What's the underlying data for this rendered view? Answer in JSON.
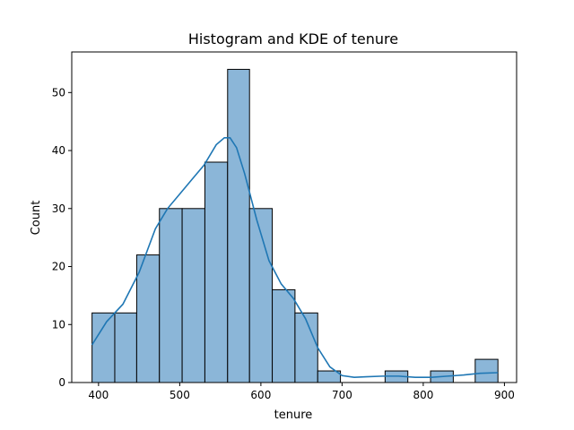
{
  "chart_data": {
    "type": "bar",
    "title": "Histogram and KDE of tenure",
    "xlabel": "tenure",
    "ylabel": "Count",
    "xlim": [
      367,
      915
    ],
    "ylim": [
      0,
      57
    ],
    "xticks": [
      400,
      500,
      600,
      700,
      800,
      900
    ],
    "yticks": [
      0,
      10,
      20,
      30,
      40,
      50
    ],
    "bar_color": "#8bb6d8",
    "bar_edge_color": "#000000",
    "kde_color": "#1f77b4",
    "bins": [
      {
        "x0": 392,
        "x1": 420,
        "count": 12
      },
      {
        "x0": 420,
        "x1": 447,
        "count": 12
      },
      {
        "x0": 447,
        "x1": 475,
        "count": 22
      },
      {
        "x0": 475,
        "x1": 503,
        "count": 30
      },
      {
        "x0": 503,
        "x1": 531,
        "count": 30
      },
      {
        "x0": 531,
        "x1": 559,
        "count": 38
      },
      {
        "x0": 559,
        "x1": 586,
        "count": 54
      },
      {
        "x0": 586,
        "x1": 614,
        "count": 30
      },
      {
        "x0": 614,
        "x1": 642,
        "count": 16
      },
      {
        "x0": 642,
        "x1": 670,
        "count": 12
      },
      {
        "x0": 670,
        "x1": 698,
        "count": 2
      },
      {
        "x0": 698,
        "x1": 725,
        "count": 0
      },
      {
        "x0": 725,
        "x1": 753,
        "count": 0
      },
      {
        "x0": 753,
        "x1": 781,
        "count": 2
      },
      {
        "x0": 781,
        "x1": 809,
        "count": 0
      },
      {
        "x0": 809,
        "x1": 837,
        "count": 2
      },
      {
        "x0": 837,
        "x1": 864,
        "count": 0
      },
      {
        "x0": 864,
        "x1": 892,
        "count": 4
      }
    ],
    "kde": {
      "x": [
        392,
        410,
        430,
        450,
        470,
        485,
        500,
        515,
        530,
        545,
        555,
        562,
        570,
        580,
        595,
        610,
        625,
        640,
        655,
        670,
        685,
        700,
        715,
        730,
        750,
        770,
        790,
        810,
        830,
        850,
        870,
        892
      ],
      "y": [
        6.5,
        10.5,
        13.5,
        19,
        26.5,
        30,
        32.5,
        35,
        37.5,
        41,
        42.2,
        42.2,
        40.5,
        36,
        28,
        21,
        17,
        14.5,
        11,
        6,
        2.7,
        1.2,
        0.9,
        1,
        1.1,
        1.1,
        0.9,
        0.9,
        1.1,
        1.3,
        1.6,
        1.7
      ]
    }
  }
}
